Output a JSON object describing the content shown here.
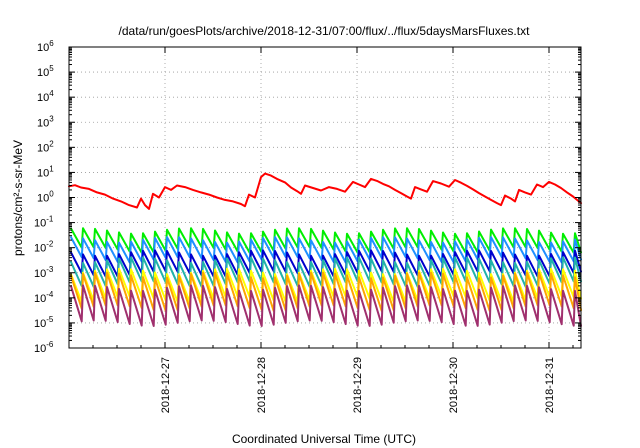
{
  "chart_data": {
    "type": "line",
    "title": "/data/run/goesPlots/archive/2018-12-31/07:00/flux/../flux/5daysMarsFluxes.txt",
    "xlabel": "Coordinated Universal Time (UTC)",
    "ylabel": "protons/cm²-s-sr-MeV",
    "y_scale": "log",
    "ylim": [
      1e-06,
      1000000.0
    ],
    "y_ticks": [
      {
        "base": "10",
        "exp": "-6"
      },
      {
        "base": "10",
        "exp": "-5"
      },
      {
        "base": "10",
        "exp": "-4"
      },
      {
        "base": "10",
        "exp": "-3"
      },
      {
        "base": "10",
        "exp": "-2"
      },
      {
        "base": "10",
        "exp": "-1"
      },
      {
        "base": "10",
        "exp": "0"
      },
      {
        "base": "10",
        "exp": "1"
      },
      {
        "base": "10",
        "exp": "2"
      },
      {
        "base": "10",
        "exp": "3"
      },
      {
        "base": "10",
        "exp": "4"
      },
      {
        "base": "10",
        "exp": "5"
      },
      {
        "base": "10",
        "exp": "6"
      }
    ],
    "xlim": [
      "2018-12-26 00:00",
      "2018-12-31 08:00"
    ],
    "x_ticks": [
      "2018-12-27",
      "2018-12-28",
      "2018-12-29",
      "2018-12-30",
      "2018-12-31"
    ],
    "grid": true,
    "series": [
      {
        "color": "#ff0000",
        "points": [
          [
            "2018-12-26 00:00",
            2.8
          ],
          [
            "2018-12-26 01:30",
            3.1
          ],
          [
            "2018-12-26 03:00",
            2.5
          ],
          [
            "2018-12-26 05:00",
            2.2
          ],
          [
            "2018-12-26 07:00",
            1.6
          ],
          [
            "2018-12-26 09:00",
            1.3
          ],
          [
            "2018-12-26 11:00",
            0.9
          ],
          [
            "2018-12-26 13:00",
            0.7
          ],
          [
            "2018-12-26 15:00",
            0.5
          ],
          [
            "2018-12-26 17:00",
            0.4
          ],
          [
            "2018-12-26 18:00",
            0.9
          ],
          [
            "2018-12-26 19:00",
            0.5
          ],
          [
            "2018-12-26 20:00",
            0.35
          ],
          [
            "2018-12-26 21:00",
            1.4
          ],
          [
            "2018-12-26 22:30",
            1.0
          ],
          [
            "2018-12-27 00:00",
            2.6
          ],
          [
            "2018-12-27 01:30",
            2.0
          ],
          [
            "2018-12-27 03:00",
            3.0
          ],
          [
            "2018-12-27 05:00",
            2.6
          ],
          [
            "2018-12-27 07:00",
            2.0
          ],
          [
            "2018-12-27 09:00",
            1.6
          ],
          [
            "2018-12-27 11:00",
            1.3
          ],
          [
            "2018-12-27 13:00",
            1.0
          ],
          [
            "2018-12-27 15:00",
            0.8
          ],
          [
            "2018-12-27 17:00",
            0.7
          ],
          [
            "2018-12-27 19:00",
            0.55
          ],
          [
            "2018-12-27 20:00",
            0.45
          ],
          [
            "2018-12-27 21:00",
            1.3
          ],
          [
            "2018-12-27 22:30",
            1.0
          ],
          [
            "2018-12-28 00:00",
            6.5
          ],
          [
            "2018-12-28 01:00",
            9.0
          ],
          [
            "2018-12-28 02:30",
            7.5
          ],
          [
            "2018-12-28 04:00",
            5.5
          ],
          [
            "2018-12-28 06:00",
            4.0
          ],
          [
            "2018-12-28 07:30",
            2.5
          ],
          [
            "2018-12-28 09:00",
            1.8
          ],
          [
            "2018-12-28 10:00",
            1.4
          ],
          [
            "2018-12-28 11:00",
            3.0
          ],
          [
            "2018-12-28 13:00",
            2.4
          ],
          [
            "2018-12-28 15:00",
            1.9
          ],
          [
            "2018-12-28 17:00",
            2.6
          ],
          [
            "2018-12-28 19:00",
            2.2
          ],
          [
            "2018-12-28 21:00",
            1.7
          ],
          [
            "2018-12-28 23:00",
            4.2
          ],
          [
            "2018-12-29 00:30",
            3.3
          ],
          [
            "2018-12-29 02:00",
            2.6
          ],
          [
            "2018-12-29 03:30",
            5.5
          ],
          [
            "2018-12-29 05:00",
            4.6
          ],
          [
            "2018-12-29 06:30",
            3.5
          ],
          [
            "2018-12-29 08:00",
            2.8
          ],
          [
            "2018-12-29 09:30",
            2.0
          ],
          [
            "2018-12-29 11:00",
            1.5
          ],
          [
            "2018-12-29 12:30",
            1.1
          ],
          [
            "2018-12-29 13:30",
            0.9
          ],
          [
            "2018-12-29 14:30",
            2.6
          ],
          [
            "2018-12-29 16:00",
            2.1
          ],
          [
            "2018-12-29 17:30",
            1.7
          ],
          [
            "2018-12-29 19:00",
            4.5
          ],
          [
            "2018-12-29 21:00",
            3.6
          ],
          [
            "2018-12-29 23:00",
            2.7
          ],
          [
            "2018-12-30 00:30",
            5.0
          ],
          [
            "2018-12-30 02:00",
            3.9
          ],
          [
            "2018-12-30 03:30",
            2.9
          ],
          [
            "2018-12-30 05:00",
            2.1
          ],
          [
            "2018-12-30 06:30",
            1.5
          ],
          [
            "2018-12-30 08:00",
            1.1
          ],
          [
            "2018-12-30 09:30",
            0.8
          ],
          [
            "2018-12-30 11:00",
            0.6
          ],
          [
            "2018-12-30 12:00",
            0.5
          ],
          [
            "2018-12-30 13:00",
            1.2
          ],
          [
            "2018-12-30 14:30",
            0.9
          ],
          [
            "2018-12-30 15:30",
            0.7
          ],
          [
            "2018-12-30 16:30",
            2.0
          ],
          [
            "2018-12-30 18:00",
            1.6
          ],
          [
            "2018-12-30 19:30",
            1.3
          ],
          [
            "2018-12-30 21:00",
            3.3
          ],
          [
            "2018-12-30 22:30",
            2.6
          ],
          [
            "2018-12-31 00:00",
            4.2
          ],
          [
            "2018-12-31 01:30",
            3.3
          ],
          [
            "2018-12-31 03:00",
            2.4
          ],
          [
            "2018-12-31 04:30",
            1.6
          ],
          [
            "2018-12-31 06:00",
            1.1
          ],
          [
            "2018-12-31 08:00",
            0.6
          ]
        ]
      },
      {
        "color": "#00ee00",
        "level": 0.02,
        "amplitude": 2.4
      },
      {
        "color": "#1e90ff",
        "level": 0.0085,
        "amplitude": 2.5
      },
      {
        "color": "#0000cd",
        "level": 0.0024,
        "amplitude": 2.6
      },
      {
        "color": "#20b2aa",
        "level": 0.0011,
        "amplitude": 3.0
      },
      {
        "color": "#ffff00",
        "level": 0.00032,
        "amplitude": 3.6
      },
      {
        "color": "#ffa500",
        "level": 0.00018,
        "amplitude": 4.5
      },
      {
        "color": "#a0306e",
        "level": 5e-05,
        "amplitude": 5.0
      }
    ]
  }
}
